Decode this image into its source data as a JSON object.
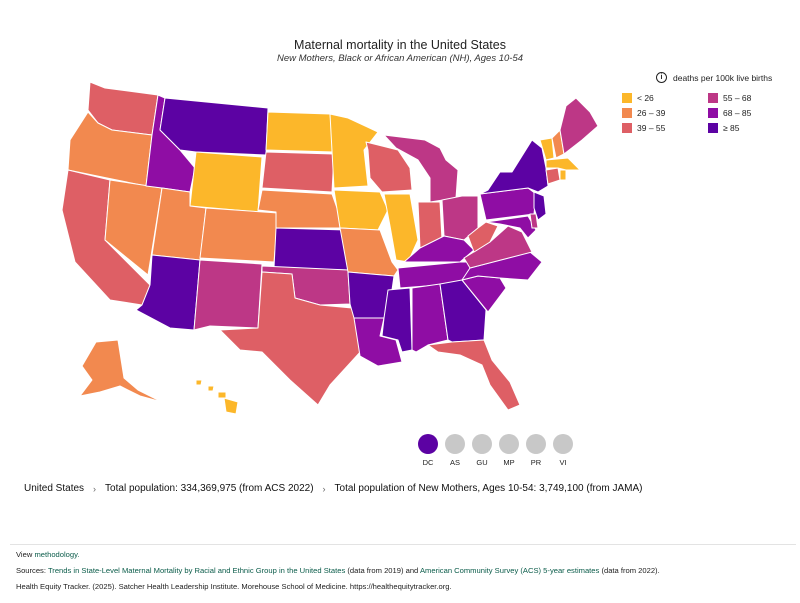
{
  "title": "Maternal mortality in the United States",
  "subtitle": "New Mothers, Black or African American (NH), Ages 10-54",
  "legend": {
    "header": "deaths per 100k live births",
    "bins": [
      {
        "label": "< 26",
        "color": "#fcb72a"
      },
      {
        "label": "55 – 68",
        "color": "#bd3786"
      },
      {
        "label": "26 – 39",
        "color": "#f2894f"
      },
      {
        "label": "68 – 85",
        "color": "#8f0da4"
      },
      {
        "label": "39 – 55",
        "color": "#de5f65"
      },
      {
        "label": "≥ 85",
        "color": "#5c02a3"
      }
    ]
  },
  "territories": [
    {
      "label": "DC",
      "color": "#5c02a3"
    },
    {
      "label": "AS",
      "color": "#c8c8c8"
    },
    {
      "label": "GU",
      "color": "#c8c8c8"
    },
    {
      "label": "MP",
      "color": "#c8c8c8"
    },
    {
      "label": "PR",
      "color": "#c8c8c8"
    },
    {
      "label": "VI",
      "color": "#c8c8c8"
    }
  ],
  "stats": {
    "location": "United States",
    "population": "Total population: 334,369,975 (from ACS 2022)",
    "mothers": "Total population of New Mothers, Ages 10-54: 3,749,100 (from JAMA)"
  },
  "footer": {
    "view_prefix": "View ",
    "methodology_link": "methodology.",
    "sources_prefix": "Sources: ",
    "source1_link": "Trends in State-Level Maternal Mortality by Racial and Ethnic Group in the United States",
    "source1_suffix": " (data from 2019) and ",
    "source2_link": "American Community Survey (ACS) 5-year estimates",
    "source2_suffix": " (data from 2022).",
    "citation": "Health Equity Tracker. (2025). Satcher Health Leadership Institute. Morehouse School of Medicine. https://healthequitytracker.org."
  }
}
